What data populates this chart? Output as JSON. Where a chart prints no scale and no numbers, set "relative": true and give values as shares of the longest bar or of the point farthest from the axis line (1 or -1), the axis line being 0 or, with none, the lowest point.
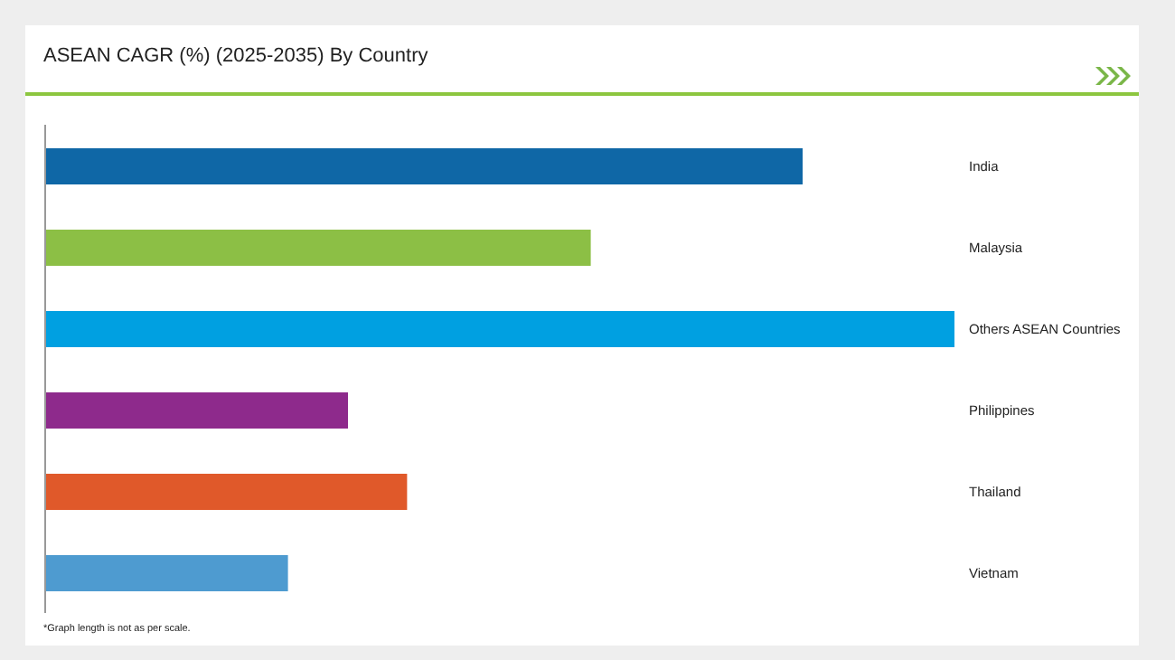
{
  "chart_data": {
    "type": "bar",
    "title": "ASEAN CAGR (%) (2025-2035) By Country",
    "orientation": "horizontal",
    "relative": true,
    "categories": [
      "India",
      "Malaysia",
      "Others ASEAN Countries",
      "Philippines",
      "Thailand",
      "Vietnam"
    ],
    "values": [
      0.833,
      0.6,
      1,
      0.333,
      0.398,
      0.267
    ],
    "colors": [
      "#0f67a6",
      "#8cbf45",
      "#00a0e1",
      "#8e2a8c",
      "#e0592a",
      "#4e9bd0"
    ],
    "annotations": [
      "*Graph length is not as per scale."
    ]
  }
}
